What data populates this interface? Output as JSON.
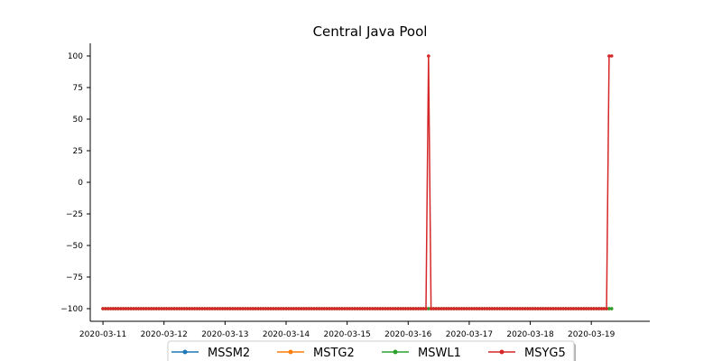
{
  "chart_data": {
    "type": "line",
    "title": "Central Java Pool",
    "xlabel": "",
    "ylabel": "",
    "x_ticks": [
      "2020-03-11",
      "2020-03-12",
      "2020-03-13",
      "2020-03-14",
      "2020-03-15",
      "2020-03-16",
      "2020-03-17",
      "2020-03-18",
      "2020-03-19"
    ],
    "y_ticks": [
      100,
      75,
      50,
      25,
      0,
      -25,
      -50,
      -75,
      -100
    ],
    "y_tick_labels": [
      "100",
      "75",
      "50",
      "25",
      "0",
      "−25",
      "−50",
      "−75",
      "−100"
    ],
    "x_range": [
      "2020-03-10T19:00",
      "2020-03-19T23:00"
    ],
    "ylim": [
      -110,
      110
    ],
    "grid": false,
    "legend_placement": "bottom-center",
    "sampling": "hourly",
    "x_start": "2020-03-11T00:00",
    "x_end": "2020-03-19T08:00",
    "series": [
      {
        "name": "MSSM2",
        "color": "#1f77b4",
        "baseline": -100,
        "spikes": []
      },
      {
        "name": "MSTG2",
        "color": "#ff7f0e",
        "baseline": -100,
        "spikes": []
      },
      {
        "name": "MSWL1",
        "color": "#2ca02c",
        "baseline": -100,
        "spikes": []
      },
      {
        "name": "MSYG5",
        "color": "#d62728",
        "baseline": -100,
        "spikes": [
          {
            "x": "2020-03-16T08:00",
            "y": 100
          },
          {
            "x": "2020-03-19T07:00",
            "y": 100
          },
          {
            "x": "2020-03-19T08:00",
            "y": 100
          }
        ]
      }
    ]
  }
}
